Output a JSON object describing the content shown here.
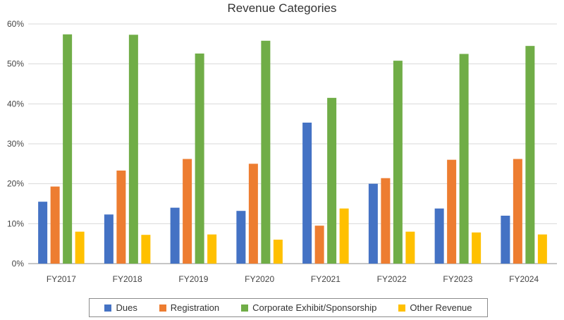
{
  "chart_data": {
    "type": "bar",
    "title": "Revenue Categories",
    "xlabel": "",
    "ylabel": "",
    "categories": [
      "FY2017",
      "FY2018",
      "FY2019",
      "FY2020",
      "FY2021",
      "FY2022",
      "FY2023",
      "FY2024"
    ],
    "ylim": [
      0,
      60
    ],
    "yticks": [
      0,
      10,
      20,
      30,
      40,
      50,
      60
    ],
    "ytick_labels": [
      "0%",
      "10%",
      "20%",
      "30%",
      "40%",
      "50%",
      "60%"
    ],
    "grid": true,
    "legend_position": "bottom",
    "series": [
      {
        "name": "Dues",
        "color": "#4472c4",
        "values": [
          15.5,
          12.3,
          14.0,
          13.2,
          35.3,
          20.0,
          13.8,
          12.0
        ]
      },
      {
        "name": "Registration",
        "color": "#ed7d31",
        "values": [
          19.3,
          23.3,
          26.2,
          25.0,
          9.5,
          21.4,
          26.0,
          26.2
        ]
      },
      {
        "name": "Corporate Exhibit/Sponsorship",
        "color": "#70ad47",
        "values": [
          57.4,
          57.3,
          52.6,
          55.8,
          41.5,
          50.8,
          52.5,
          54.5
        ]
      },
      {
        "name": "Other Revenue",
        "color": "#ffc000",
        "values": [
          8.0,
          7.2,
          7.3,
          6.0,
          13.8,
          8.0,
          7.8,
          7.3
        ]
      }
    ]
  }
}
